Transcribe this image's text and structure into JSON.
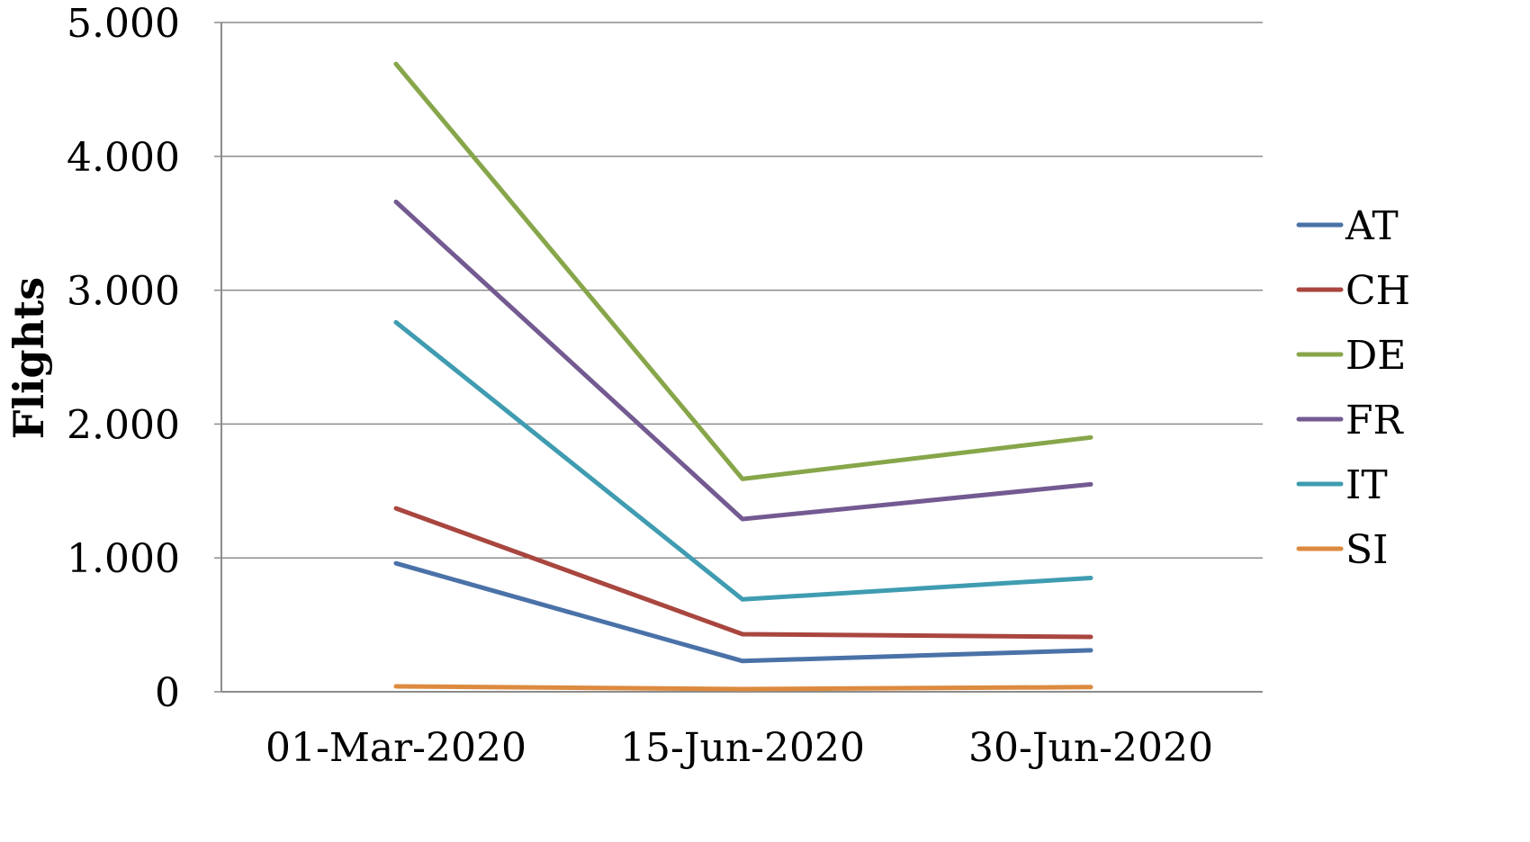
{
  "chart_data": {
    "type": "line",
    "ylabel": "Flights",
    "xlabel": "",
    "categories": [
      "01-Mar-2020",
      "15-Jun-2020",
      "30-Jun-2020"
    ],
    "ylim": [
      0,
      5000
    ],
    "yticks": [
      0,
      1000,
      2000,
      3000,
      4000,
      5000
    ],
    "ytick_labels": [
      "0",
      "1.000",
      "2.000",
      "3.000",
      "4.000",
      "5.000"
    ],
    "grid": true,
    "legend_position": "right",
    "series": [
      {
        "name": "AT",
        "color": "#4a72a8",
        "values": [
          960,
          230,
          310
        ]
      },
      {
        "name": "CH",
        "color": "#a8463f",
        "values": [
          1370,
          430,
          410
        ]
      },
      {
        "name": "DE",
        "color": "#87a64a",
        "values": [
          4690,
          1590,
          1900
        ]
      },
      {
        "name": "FR",
        "color": "#735a91",
        "values": [
          3660,
          1290,
          1550
        ]
      },
      {
        "name": "IT",
        "color": "#3f9cb1",
        "values": [
          2760,
          690,
          850
        ]
      },
      {
        "name": "SI",
        "color": "#dc8a3f",
        "values": [
          40,
          20,
          35
        ]
      }
    ]
  }
}
